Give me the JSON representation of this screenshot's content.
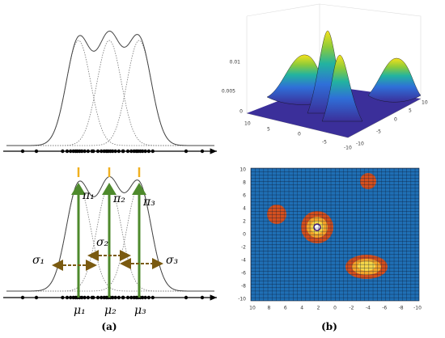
{
  "panel_a": {
    "pi_labels": [
      "π₁",
      "π₂",
      "π₃"
    ],
    "sigma_labels": [
      "σ₁",
      "σ₂",
      "σ₃"
    ],
    "mu_labels": [
      "μ₁",
      "μ₂",
      "μ₃"
    ],
    "caption": "(a)"
  },
  "panel_b": {
    "surface": {
      "z_ticks": [
        "0.01",
        "0.005",
        "0"
      ],
      "y_ticks": [
        "10",
        "5",
        "0",
        "-5",
        "-10"
      ],
      "x_ticks": [
        "-5",
        "-10"
      ],
      "right_ticks": [
        "10",
        "5",
        "0"
      ]
    },
    "heatmap": {
      "y_ticks": [
        "10",
        "8",
        "6",
        "4",
        "2",
        "0",
        "-2",
        "-4",
        "-6",
        "-8",
        "-10"
      ],
      "x_ticks": [
        "10",
        "8",
        "6",
        "4",
        "2",
        "0",
        "-2",
        "-4",
        "-6",
        "-8",
        "-10"
      ]
    },
    "caption": "(b)"
  }
}
